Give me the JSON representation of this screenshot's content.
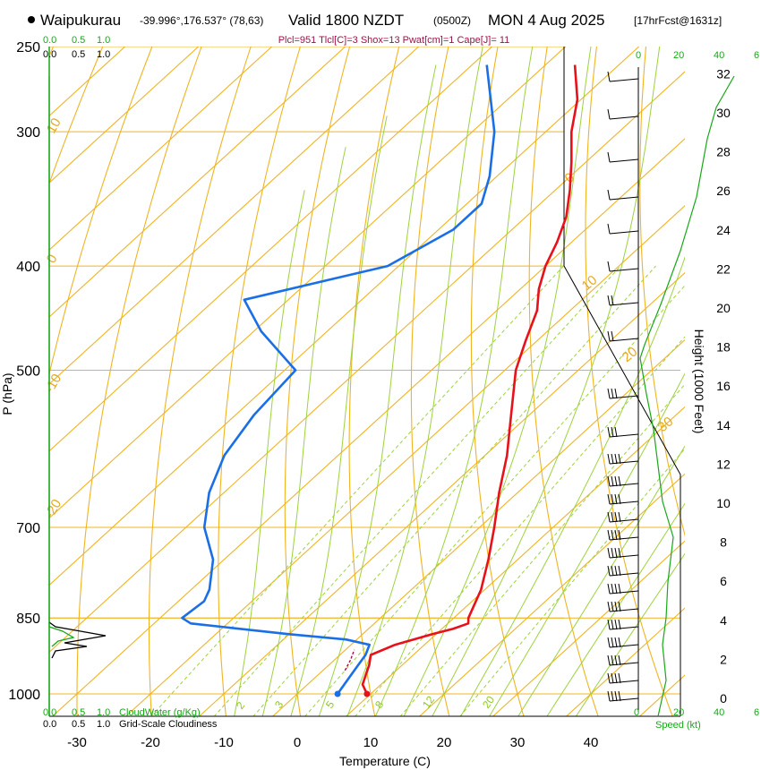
{
  "header": {
    "station": "Waipukurau",
    "coords": "-39.996°,176.537° (78,63)",
    "valid": "Valid 1800 NZDT",
    "zulu": "(0500Z)",
    "date": "MON 4 Aug 2025",
    "forecast": "[17hrFcst@1631z]",
    "params": "Plcl=951 Tlcl[C]=3 Shox=13 Pwat[cm]=1 Cape[J]= 11"
  },
  "axes": {
    "x_title": "Temperature (C)",
    "y_title": "P (hPa)",
    "height_title": "Height (1000 Feet)",
    "speed_title": "Speed (kt)"
  },
  "scales": {
    "cloud_water_top": [
      "0.0",
      "0.5",
      "1.0"
    ],
    "cloudiness_top": [
      "0.0",
      "0.5",
      "1.0"
    ],
    "cloud_water_bottom": [
      "0.0",
      "0.5",
      "1.0"
    ],
    "cloudiness_bottom": [
      "0.0",
      "0.5",
      "1.0"
    ],
    "cloud_water_label": "CloudWater (g/Kg)",
    "cloudiness_label": "Grid-Scale Cloudiness",
    "wind_speed_ticks_top": [
      "0",
      "20",
      "40",
      "6"
    ],
    "wind_speed_ticks_bottom": [
      "0",
      "20",
      "40",
      "6"
    ]
  },
  "colors": {
    "temperature": "#e8111a",
    "dewpoint": "#1a6fe6",
    "isotherm": "#f0b422",
    "dry_adiabat": "#f0b422",
    "moist_adiabat": "#9ed23c",
    "mixing_ratio": "#9ed23c",
    "wind_speed": "#18a818",
    "cloud": "#18a818",
    "param_text": "#a0104a"
  },
  "chart_data": {
    "type": "skew-t",
    "pressure_ticks": [
      250,
      300,
      400,
      500,
      700,
      850,
      1000
    ],
    "temperature_ticks": [
      -30,
      -20,
      -10,
      0,
      10,
      20,
      30,
      40
    ],
    "height_ticks": [
      0,
      2,
      4,
      6,
      8,
      10,
      12,
      14,
      16,
      18,
      20,
      22,
      24,
      26,
      28,
      30,
      32
    ],
    "isotherm_labels": [
      "10",
      "0",
      "-10",
      "-20",
      "0",
      "10",
      "20",
      "30"
    ],
    "mixing_ratio_labels": [
      "2",
      "3",
      "5",
      "8",
      "12",
      "20"
    ],
    "temperature_profile": {
      "name": "Temperature",
      "pressure": [
        1000,
        980,
        960,
        940,
        920,
        900,
        880,
        870,
        860,
        850,
        800,
        750,
        700,
        650,
        600,
        550,
        500,
        470,
        440,
        420,
        400,
        380,
        360,
        340,
        320,
        300,
        280,
        260
      ],
      "value": [
        9.5,
        7.5,
        6.5,
        5.5,
        4.2,
        6.0,
        9.5,
        11.5,
        12.8,
        12.0,
        9.5,
        6.0,
        2.0,
        -2.5,
        -7.0,
        -12.5,
        -18.5,
        -21.5,
        -24.5,
        -27.5,
        -30.0,
        -32.0,
        -34.5,
        -38.0,
        -42.0,
        -46.5,
        -50.5,
        -56.0
      ]
    },
    "dewpoint_profile": {
      "name": "Dewpoint",
      "pressure": [
        1000,
        980,
        960,
        940,
        920,
        900,
        890,
        880,
        860,
        850,
        820,
        800,
        750,
        700,
        650,
        600,
        550,
        500,
        460,
        430,
        400,
        370,
        350,
        330,
        300,
        260
      ],
      "value": [
        5.5,
        5.0,
        4.5,
        4.0,
        3.5,
        2.5,
        -1.5,
        -10.0,
        -25.0,
        -27.0,
        -26.5,
        -27.5,
        -31.5,
        -37.5,
        -42.0,
        -45.5,
        -47.5,
        -48.5,
        -59.0,
        -66.0,
        -51.5,
        -48.0,
        -48.0,
        -51.0,
        -57.0,
        -68.0
      ]
    }
  }
}
